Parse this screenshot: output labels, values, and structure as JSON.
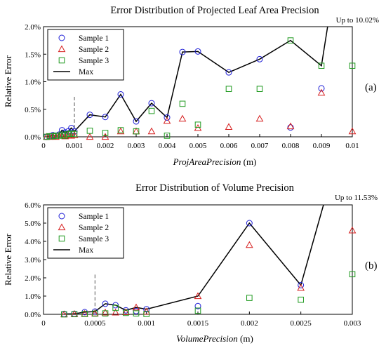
{
  "colors": {
    "sample1": "#1f1fd6",
    "sample2": "#d61f1f",
    "sample3": "#1f9a1f",
    "max": "#000000"
  },
  "chart_data": [
    {
      "type": "scatter",
      "title": "Error Distribution of Projected Leaf Area Precision",
      "xlabel_var": "ProjAreaPrecision",
      "xlabel_unit": " (m)",
      "ylabel": "Relative Error",
      "panel_tag": "(a)",
      "note": "Up to 10.02%",
      "xlim": [
        0,
        0.01
      ],
      "ylim": [
        0,
        2.0
      ],
      "xticks": [
        0,
        0.001,
        0.002,
        0.003,
        0.004,
        0.005,
        0.006,
        0.007,
        0.008,
        0.009,
        0.01
      ],
      "xtick_labels": [
        "0",
        "0.001",
        "0.002",
        "0.003",
        "0.004",
        "0.005",
        "0.006",
        "0.007",
        "0.008",
        "0.009",
        "0.01"
      ],
      "yticks": [
        0,
        0.5,
        1.0,
        1.5,
        2.0
      ],
      "ytick_labels": [
        "0.0%",
        "0.5%",
        "1.0%",
        "1.5%",
        "2.0%"
      ],
      "vline": 0.001,
      "legend": [
        "Sample 1",
        "Sample 2",
        "Sample 3",
        "Max"
      ],
      "series": [
        {
          "name": "Sample 1",
          "marker": "circle",
          "x": [
            0.0001,
            0.0002,
            0.0003,
            0.0004,
            0.0005,
            0.0006,
            0.0007,
            0.0008,
            0.0009,
            0.001,
            0.0015,
            0.002,
            0.0025,
            0.003,
            0.0035,
            0.004,
            0.0045,
            0.005,
            0.006,
            0.007,
            0.008,
            0.009
          ],
          "y": [
            0.0,
            0.01,
            0.03,
            0.02,
            0.04,
            0.12,
            0.08,
            0.1,
            0.16,
            0.1,
            0.4,
            0.36,
            0.77,
            0.28,
            0.61,
            0.35,
            1.54,
            1.55,
            1.17,
            1.41,
            0.17,
            0.88
          ]
        },
        {
          "name": "Sample 2",
          "marker": "triangle",
          "x": [
            0.0001,
            0.0002,
            0.0003,
            0.0004,
            0.0005,
            0.0006,
            0.0007,
            0.0008,
            0.0009,
            0.001,
            0.0015,
            0.002,
            0.0025,
            0.003,
            0.0035,
            0.004,
            0.0045,
            0.005,
            0.006,
            0.007,
            0.008,
            0.009,
            0.01
          ],
          "y": [
            0.0,
            0.0,
            0.01,
            0.0,
            0.02,
            0.02,
            0.01,
            0.03,
            0.02,
            0.03,
            0.0,
            0.0,
            0.1,
            0.1,
            0.1,
            0.29,
            0.33,
            0.16,
            0.18,
            0.33,
            0.19,
            0.8,
            0.1
          ]
        },
        {
          "name": "Sample 3",
          "marker": "square",
          "x": [
            0.0001,
            0.0002,
            0.0003,
            0.0004,
            0.0005,
            0.0006,
            0.0007,
            0.0008,
            0.0009,
            0.001,
            0.0015,
            0.002,
            0.0025,
            0.003,
            0.0035,
            0.004,
            0.0045,
            0.005,
            0.006,
            0.007,
            0.008,
            0.009,
            0.01
          ],
          "y": [
            0.0,
            0.01,
            0.01,
            0.02,
            0.02,
            0.04,
            0.02,
            0.05,
            0.06,
            0.05,
            0.11,
            0.07,
            0.12,
            0.1,
            0.47,
            0.02,
            0.6,
            0.22,
            0.87,
            0.87,
            1.75,
            1.29,
            1.29
          ]
        },
        {
          "name": "Max",
          "marker": "line",
          "x": [
            0.0001,
            0.0002,
            0.0003,
            0.0004,
            0.0005,
            0.0006,
            0.0007,
            0.0008,
            0.0009,
            0.001,
            0.0015,
            0.002,
            0.0025,
            0.003,
            0.0035,
            0.004,
            0.0045,
            0.005,
            0.006,
            0.007,
            0.008,
            0.009,
            0.0092
          ],
          "y": [
            0.0,
            0.01,
            0.03,
            0.02,
            0.04,
            0.12,
            0.08,
            0.1,
            0.16,
            0.1,
            0.4,
            0.36,
            0.77,
            0.28,
            0.61,
            0.35,
            1.54,
            1.55,
            1.17,
            1.41,
            1.75,
            1.29,
            2.0
          ]
        }
      ]
    },
    {
      "type": "scatter",
      "title": "Error Distribution of Volume Precision",
      "xlabel_var": "VolumePrecision",
      "xlabel_unit": " (m)",
      "ylabel": "Relative Error",
      "panel_tag": "(b)",
      "note": "Up to 11.53%",
      "xlim": [
        0,
        0.003
      ],
      "ylim": [
        0,
        6.0
      ],
      "xticks": [
        0,
        0.0005,
        0.001,
        0.0015,
        0.002,
        0.0025,
        0.003
      ],
      "xtick_labels": [
        "0",
        "0.0005",
        "0.001",
        "0.0015",
        "0.002",
        "0.0025",
        "0.003"
      ],
      "yticks": [
        0,
        1.0,
        2.0,
        3.0,
        4.0,
        5.0,
        6.0
      ],
      "ytick_labels": [
        "0.0%",
        "1.0%",
        "2.0%",
        "3.0%",
        "4.0%",
        "5.0%",
        "6.0%"
      ],
      "vline": 0.0005,
      "legend": [
        "Sample 1",
        "Sample 2",
        "Sample 3",
        "Max"
      ],
      "series": [
        {
          "name": "Sample 1",
          "marker": "circle",
          "x": [
            0.0002,
            0.0003,
            0.0004,
            0.0005,
            0.0006,
            0.0007,
            0.0008,
            0.0009,
            0.001,
            0.0015,
            0.002,
            0.0025
          ],
          "y": [
            0.02,
            0.03,
            0.12,
            0.15,
            0.58,
            0.5,
            0.22,
            0.18,
            0.28,
            0.45,
            5.0,
            1.6
          ]
        },
        {
          "name": "Sample 2",
          "marker": "triangle",
          "x": [
            0.0002,
            0.0003,
            0.0004,
            0.0005,
            0.0006,
            0.0007,
            0.0008,
            0.0009,
            0.001,
            0.0015,
            0.002,
            0.0025,
            0.003
          ],
          "y": [
            0.0,
            0.02,
            0.03,
            0.05,
            0.1,
            0.1,
            0.12,
            0.38,
            0.15,
            1.0,
            3.8,
            1.45,
            4.6
          ]
        },
        {
          "name": "Sample 3",
          "marker": "square",
          "x": [
            0.0002,
            0.0003,
            0.0004,
            0.0005,
            0.0006,
            0.0007,
            0.0008,
            0.0009,
            0.001,
            0.0015,
            0.002,
            0.0025,
            0.003
          ],
          "y": [
            0.0,
            0.01,
            0.02,
            0.04,
            0.05,
            0.35,
            0.08,
            0.05,
            0.02,
            0.2,
            0.9,
            0.8,
            2.2
          ]
        },
        {
          "name": "Max",
          "marker": "line",
          "x": [
            0.0002,
            0.0003,
            0.0004,
            0.0005,
            0.0006,
            0.0007,
            0.0008,
            0.0009,
            0.001,
            0.0015,
            0.002,
            0.0025,
            0.00272
          ],
          "y": [
            0.02,
            0.03,
            0.12,
            0.15,
            0.58,
            0.5,
            0.22,
            0.38,
            0.28,
            1.0,
            5.0,
            1.6,
            6.0
          ]
        }
      ]
    }
  ]
}
